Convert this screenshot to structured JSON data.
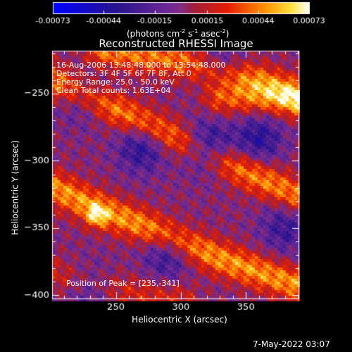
{
  "chart_data": {
    "type": "heatmap",
    "title": "Reconstructed RHESSI Image",
    "xlabel": "Heliocentric X (arcsec)",
    "ylabel": "Heliocentric Y (arcsec)",
    "xlim": [
      201,
      391
    ],
    "ylim": [
      -403,
      -218
    ],
    "xticks": [
      250,
      300,
      350
    ],
    "yticks": [
      -250,
      -300,
      -350,
      -400
    ],
    "colorbar": {
      "range": [
        -0.00073,
        0.00073
      ],
      "tick_values": [
        -0.00073,
        -0.00044,
        -0.00015,
        0.00015,
        0.00044,
        0.00073
      ],
      "tick_labels": [
        "-0.00073",
        "-0.00044",
        "-0.00015",
        "0.00015",
        "0.00044",
        "0.00073"
      ],
      "unit_prefix": "(photons cm",
      "unit_sup1": "-2",
      "unit_mid1": " s",
      "unit_sup2": "-1",
      "unit_mid2": " asec",
      "unit_sup3": "-2",
      "unit_suffix": ")"
    },
    "annotations": [
      "16-Aug-2006 13:48:48.000 to 13:54:48.000",
      "Detectors: 3F 4F 5F 6F 7F 8F, Att 0",
      "Energy Range: 25.0 - 50.0 keV",
      "Clean     Total counts: 1.63E+04"
    ],
    "peak_label": "Position of Peak = [235,-341]",
    "peak": [
      235,
      -341
    ],
    "ridges": [
      {
        "points": [
          [
            201,
            -240
          ],
          [
            250,
            -262
          ],
          [
            300,
            -285
          ],
          [
            350,
            -308
          ],
          [
            391,
            -327
          ]
        ],
        "amplitude": 0.62
      },
      {
        "points": [
          [
            240,
            -218
          ],
          [
            300,
            -226
          ],
          [
            360,
            -240
          ],
          [
            391,
            -252
          ]
        ],
        "amplitude": 0.58
      },
      {
        "points": [
          [
            201,
            -320
          ],
          [
            240,
            -337
          ],
          [
            280,
            -352
          ],
          [
            330,
            -373
          ],
          [
            391,
            -393
          ]
        ],
        "amplitude": 0.66
      },
      {
        "points": [
          [
            330,
            -253
          ],
          [
            391,
            -255
          ]
        ],
        "amplitude": 0.5
      },
      {
        "points": [
          [
            201,
            -385
          ],
          [
            260,
            -398
          ],
          [
            300,
            -403
          ]
        ],
        "amplitude": 0.3
      }
    ],
    "troughs": [
      {
        "center": [
          320,
          -290
        ],
        "amplitude": -0.7
      },
      {
        "center": [
          270,
          -290
        ],
        "amplitude": -0.5
      },
      {
        "center": [
          360,
          -283
        ],
        "amplitude": -0.5
      },
      {
        "center": [
          290,
          -370
        ],
        "amplitude": -0.45
      },
      {
        "center": [
          225,
          -255
        ],
        "amplitude": -0.35
      },
      {
        "center": [
          330,
          -228
        ],
        "amplitude": -0.4
      },
      {
        "center": [
          380,
          -350
        ],
        "amplitude": -0.4
      },
      {
        "center": [
          230,
          -395
        ],
        "amplitude": -0.35
      }
    ]
  },
  "footer": {
    "timestamp": "7-May-2022 03:07"
  }
}
